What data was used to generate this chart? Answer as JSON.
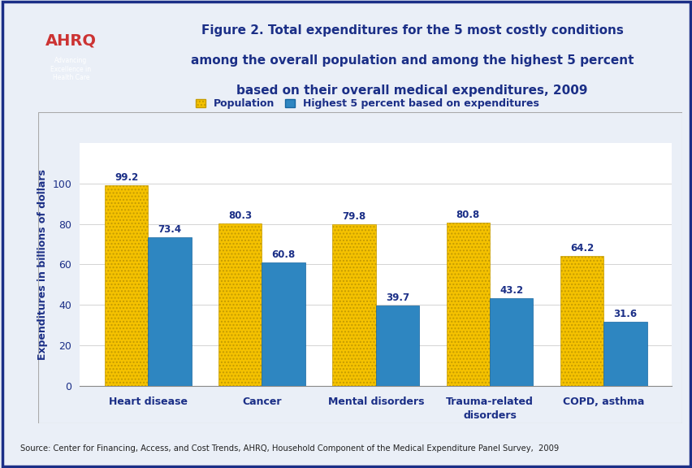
{
  "title_line1": "Figure 2. Total expenditures for the 5 most costly conditions",
  "title_line2": "among the overall population and among the highest 5 percent",
  "title_line3": "based on their overall medical expenditures, 2009",
  "categories": [
    "Heart disease",
    "Cancer",
    "Mental disorders",
    "Trauma-related\ndisorders",
    "COPD, asthma"
  ],
  "population_values": [
    99.2,
    80.3,
    79.8,
    80.8,
    64.2
  ],
  "highest5_values": [
    73.4,
    60.8,
    39.7,
    43.2,
    31.6
  ],
  "population_color": "#F5C200",
  "highest5_color": "#2E86C1",
  "ylabel": "Expenditures in billions of dollars",
  "ylim": [
    0,
    120
  ],
  "yticks": [
    0,
    20,
    40,
    60,
    80,
    100
  ],
  "legend_pop": "Population",
  "legend_high": "Highest 5 percent based on expenditures",
  "source_text": "Source: Center for Financing, Access, and Cost Trends, AHRQ, Household Component of the Medical Expenditure Panel Survey,  2009",
  "bar_width": 0.38,
  "title_color": "#1B2F87",
  "label_color": "#1B2F87",
  "axis_label_color": "#1B2F87",
  "value_label_color": "#1B2F87",
  "outer_border_color": "#1B2F87",
  "blue_line_color": "#1B2F87",
  "grid_color": "#CCCCCC",
  "outer_bg": "#EAEFF7",
  "header_bg": "#FFFFFF",
  "chart_panel_bg": "#FFFFFF",
  "footer_bg": "#EAEFF7"
}
